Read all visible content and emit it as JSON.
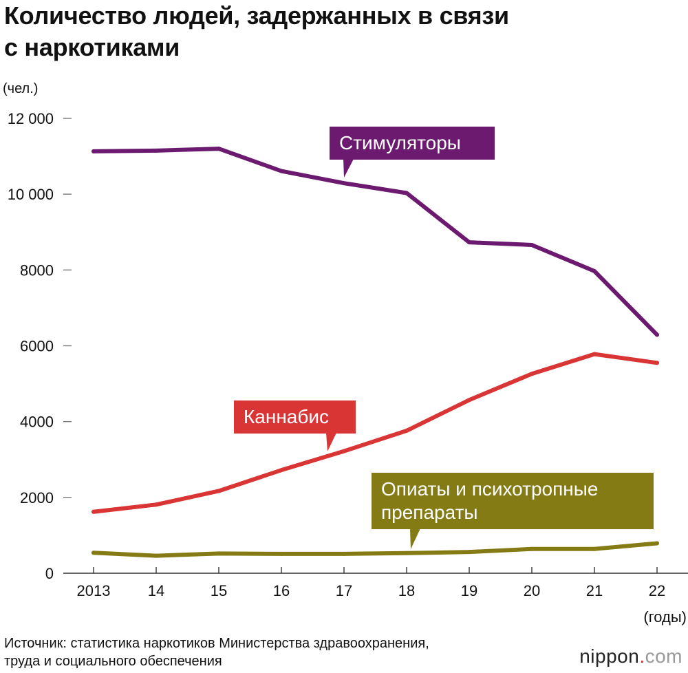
{
  "header": {
    "title_line1": "Количество людей, задержанных в связи",
    "title_line2": "с наркотиками"
  },
  "footer": {
    "source_line1": "Источник: статистика наркотиков Министерства здравоохранения,",
    "source_line2": "труда и социального обеспечения",
    "brand_name": "nippon",
    "brand_dot": ".",
    "brand_tld": "com"
  },
  "chart_data": {
    "type": "line",
    "title": "Количество людей, задержанных в связи с наркотиками",
    "ylabel": "(чел.)",
    "xlabel": "(годы)",
    "ylim": [
      0,
      12000
    ],
    "categories": [
      "2013",
      "14",
      "15",
      "16",
      "17",
      "18",
      "19",
      "20",
      "21",
      "22"
    ],
    "y_ticks": [
      {
        "value": 0,
        "label": "0"
      },
      {
        "value": 2000,
        "label": "2000"
      },
      {
        "value": 4000,
        "label": "4000"
      },
      {
        "value": 6000,
        "label": "6000"
      },
      {
        "value": 8000,
        "label": "8000"
      },
      {
        "value": 10000,
        "label": "10 000"
      },
      {
        "value": 12000,
        "label": "12 000"
      }
    ],
    "series": [
      {
        "key": "stimulants",
        "name": "Стимуляторы",
        "label_lines": [
          "Стимуляторы"
        ],
        "label_anchor_index": 4,
        "color": "#6b1a6f",
        "values": [
          11130,
          11150,
          11200,
          10610,
          10290,
          10030,
          8730,
          8660,
          7970,
          6290
        ]
      },
      {
        "key": "cannabis",
        "name": "Каннабис",
        "label_lines": [
          "Каннабис"
        ],
        "label_anchor_index": 4,
        "color": "#d93535",
        "values": [
          1620,
          1810,
          2170,
          2720,
          3220,
          3760,
          4570,
          5260,
          5780,
          5550
        ]
      },
      {
        "key": "opiates",
        "name": "Опиаты и психотропные препараты",
        "label_lines": [
          "Опиаты и психотропные",
          "препараты"
        ],
        "label_anchor_index": 5,
        "color": "#857b14",
        "values": [
          540,
          460,
          520,
          510,
          510,
          530,
          560,
          640,
          640,
          790
        ]
      }
    ]
  }
}
